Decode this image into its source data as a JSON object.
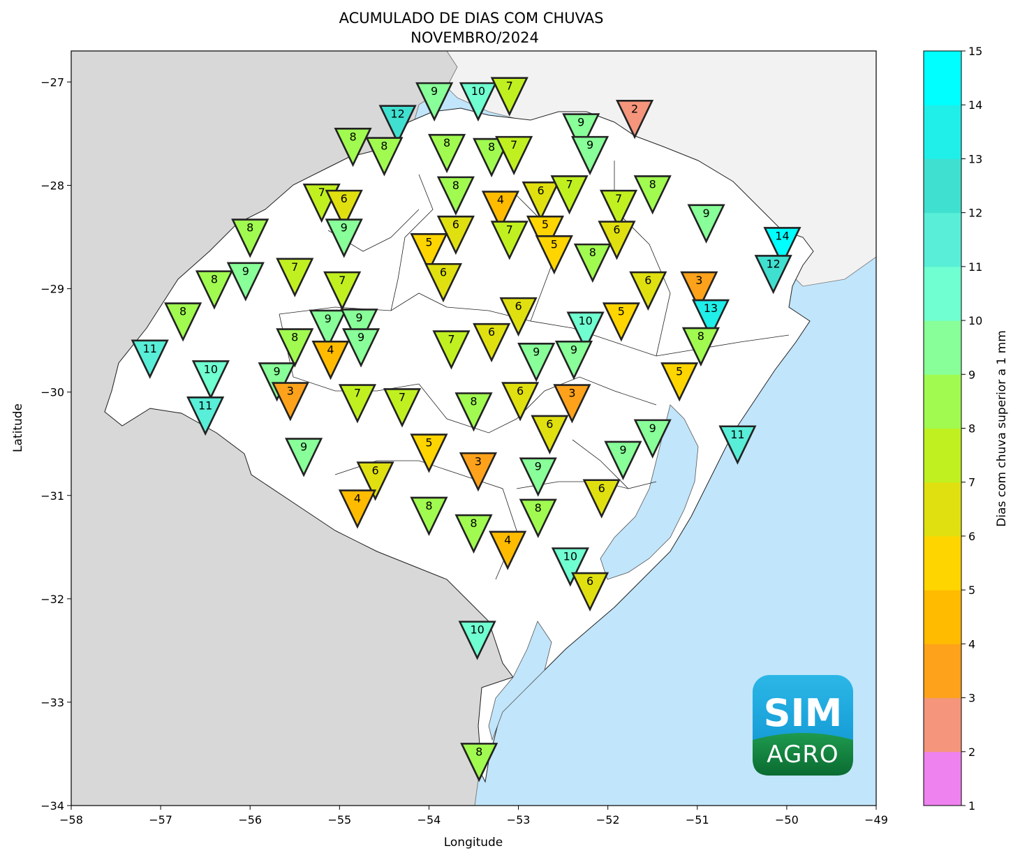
{
  "title": {
    "line1": "ACUMULADO DE DIAS COM CHUVAS",
    "line2": "NOVEMBRO/2024"
  },
  "axes": {
    "xlabel": "Longitude",
    "ylabel": "Latitude",
    "xlim": [
      -58,
      -49
    ],
    "ylim": [
      -34,
      -26.7
    ],
    "xticks": [
      -58,
      -57,
      -56,
      -55,
      -54,
      -53,
      -52,
      -51,
      -50,
      -49
    ],
    "xtick_labels": [
      "−58",
      "−57",
      "−56",
      "−55",
      "−54",
      "−53",
      "−52",
      "−51",
      "−50",
      "−49"
    ],
    "yticks": [
      -34,
      -33,
      -32,
      -31,
      -30,
      -29,
      -28,
      -27
    ],
    "ytick_labels": [
      "−34",
      "−33",
      "−32",
      "−31",
      "−30",
      "−29",
      "−28",
      "−27"
    ]
  },
  "colorbar": {
    "label": "Dias com chuva superior a 1 mm",
    "ticks": [
      "1",
      "2",
      "3",
      "4",
      "5",
      "6",
      "7",
      "8",
      "9",
      "10",
      "11",
      "12",
      "13",
      "14",
      "15"
    ],
    "colors": [
      "#ee82ee",
      "#f4957c",
      "#fda21a",
      "#ffbb00",
      "#ffd500",
      "#e0e010",
      "#c0f020",
      "#a0fa50",
      "#88ff98",
      "#70ffd0",
      "#58eed8",
      "#40e0d0",
      "#20eee8",
      "#00ffff"
    ]
  },
  "logo": {
    "line1": "SIM",
    "line2": "AGRO"
  },
  "colors": {
    "ocean": "#c1e5fb",
    "foreign_land": "#d8d8d8",
    "sc_land": "#f2f2f2",
    "state_land": "#ffffff",
    "marker_edge": "#222222"
  },
  "chart_data": {
    "type": "scatter",
    "title": "ACUMULADO DE DIAS COM CHUVAS NOVEMBRO/2024",
    "xlabel": "Longitude",
    "ylabel": "Latitude",
    "xlim": [
      -58,
      -49
    ],
    "ylim": [
      -34,
      -26.7
    ],
    "value_label": "Dias com chuva superior a 1 mm",
    "stations": [
      {
        "lon": -53.94,
        "lat": -27.16,
        "value": 9
      },
      {
        "lon": -53.45,
        "lat": -27.16,
        "value": 10
      },
      {
        "lon": -53.1,
        "lat": -27.11,
        "value": 7
      },
      {
        "lon": -51.7,
        "lat": -27.33,
        "value": 2
      },
      {
        "lon": -54.35,
        "lat": -27.38,
        "value": 12
      },
      {
        "lon": -52.3,
        "lat": -27.46,
        "value": 9
      },
      {
        "lon": -54.85,
        "lat": -27.6,
        "value": 8
      },
      {
        "lon": -54.5,
        "lat": -27.69,
        "value": 8
      },
      {
        "lon": -53.8,
        "lat": -27.66,
        "value": 8
      },
      {
        "lon": -53.3,
        "lat": -27.7,
        "value": 8
      },
      {
        "lon": -53.05,
        "lat": -27.68,
        "value": 7
      },
      {
        "lon": -52.2,
        "lat": -27.68,
        "value": 9
      },
      {
        "lon": -53.7,
        "lat": -28.07,
        "value": 8
      },
      {
        "lon": -52.75,
        "lat": -28.12,
        "value": 6
      },
      {
        "lon": -52.43,
        "lat": -28.06,
        "value": 7
      },
      {
        "lon": -51.5,
        "lat": -28.06,
        "value": 8
      },
      {
        "lon": -55.2,
        "lat": -28.14,
        "value": 7
      },
      {
        "lon": -54.95,
        "lat": -28.2,
        "value": 6
      },
      {
        "lon": -53.2,
        "lat": -28.21,
        "value": 4
      },
      {
        "lon": -51.88,
        "lat": -28.2,
        "value": 7
      },
      {
        "lon": -50.9,
        "lat": -28.34,
        "value": 9
      },
      {
        "lon": -56.0,
        "lat": -28.48,
        "value": 8
      },
      {
        "lon": -54.95,
        "lat": -28.48,
        "value": 9
      },
      {
        "lon": -53.7,
        "lat": -28.45,
        "value": 6
      },
      {
        "lon": -53.1,
        "lat": -28.5,
        "value": 7
      },
      {
        "lon": -52.7,
        "lat": -28.45,
        "value": 5
      },
      {
        "lon": -51.9,
        "lat": -28.5,
        "value": 6
      },
      {
        "lon": -50.05,
        "lat": -28.56,
        "value": 14
      },
      {
        "lon": -54.0,
        "lat": -28.62,
        "value": 5
      },
      {
        "lon": -52.6,
        "lat": -28.64,
        "value": 5
      },
      {
        "lon": -52.17,
        "lat": -28.72,
        "value": 8
      },
      {
        "lon": -50.15,
        "lat": -28.83,
        "value": 12
      },
      {
        "lon": -55.5,
        "lat": -28.86,
        "value": 7
      },
      {
        "lon": -56.05,
        "lat": -28.9,
        "value": 9
      },
      {
        "lon": -56.4,
        "lat": -28.98,
        "value": 8
      },
      {
        "lon": -53.84,
        "lat": -28.91,
        "value": 6
      },
      {
        "lon": -54.97,
        "lat": -28.99,
        "value": 7
      },
      {
        "lon": -51.55,
        "lat": -28.99,
        "value": 6
      },
      {
        "lon": -50.98,
        "lat": -28.99,
        "value": 3
      },
      {
        "lon": -56.75,
        "lat": -29.29,
        "value": 8
      },
      {
        "lon": -53.0,
        "lat": -29.24,
        "value": 6
      },
      {
        "lon": -51.85,
        "lat": -29.29,
        "value": 5
      },
      {
        "lon": -50.85,
        "lat": -29.26,
        "value": 13
      },
      {
        "lon": -55.13,
        "lat": -29.36,
        "value": 9
      },
      {
        "lon": -54.78,
        "lat": -29.35,
        "value": 9
      },
      {
        "lon": -52.25,
        "lat": -29.38,
        "value": 10
      },
      {
        "lon": -53.3,
        "lat": -29.49,
        "value": 6
      },
      {
        "lon": -55.5,
        "lat": -29.54,
        "value": 8
      },
      {
        "lon": -54.76,
        "lat": -29.54,
        "value": 9
      },
      {
        "lon": -53.75,
        "lat": -29.56,
        "value": 7
      },
      {
        "lon": -50.96,
        "lat": -29.53,
        "value": 8
      },
      {
        "lon": -57.12,
        "lat": -29.65,
        "value": 11
      },
      {
        "lon": -55.1,
        "lat": -29.66,
        "value": 4
      },
      {
        "lon": -52.8,
        "lat": -29.68,
        "value": 9
      },
      {
        "lon": -52.38,
        "lat": -29.66,
        "value": 9
      },
      {
        "lon": -56.44,
        "lat": -29.85,
        "value": 10
      },
      {
        "lon": -55.7,
        "lat": -29.87,
        "value": 9
      },
      {
        "lon": -51.2,
        "lat": -29.87,
        "value": 5
      },
      {
        "lon": -52.98,
        "lat": -30.06,
        "value": 6
      },
      {
        "lon": -55.55,
        "lat": -30.06,
        "value": 3
      },
      {
        "lon": -54.8,
        "lat": -30.08,
        "value": 7
      },
      {
        "lon": -54.3,
        "lat": -30.12,
        "value": 7
      },
      {
        "lon": -52.4,
        "lat": -30.08,
        "value": 3
      },
      {
        "lon": -56.5,
        "lat": -30.2,
        "value": 11
      },
      {
        "lon": -53.5,
        "lat": -30.16,
        "value": 8
      },
      {
        "lon": -52.65,
        "lat": -30.38,
        "value": 6
      },
      {
        "lon": -51.5,
        "lat": -30.42,
        "value": 9
      },
      {
        "lon": -50.55,
        "lat": -30.48,
        "value": 11
      },
      {
        "lon": -55.4,
        "lat": -30.6,
        "value": 9
      },
      {
        "lon": -54.0,
        "lat": -30.56,
        "value": 5
      },
      {
        "lon": -51.83,
        "lat": -30.63,
        "value": 9
      },
      {
        "lon": -53.45,
        "lat": -30.74,
        "value": 3
      },
      {
        "lon": -52.78,
        "lat": -30.79,
        "value": 9
      },
      {
        "lon": -54.6,
        "lat": -30.83,
        "value": 6
      },
      {
        "lon": -52.07,
        "lat": -31.0,
        "value": 6
      },
      {
        "lon": -54.8,
        "lat": -31.1,
        "value": 4
      },
      {
        "lon": -54.0,
        "lat": -31.17,
        "value": 8
      },
      {
        "lon": -52.78,
        "lat": -31.19,
        "value": 8
      },
      {
        "lon": -53.5,
        "lat": -31.34,
        "value": 8
      },
      {
        "lon": -53.12,
        "lat": -31.5,
        "value": 4
      },
      {
        "lon": -52.42,
        "lat": -31.66,
        "value": 10
      },
      {
        "lon": -52.2,
        "lat": -31.9,
        "value": 6
      },
      {
        "lon": -53.46,
        "lat": -32.37,
        "value": 10
      },
      {
        "lon": -53.44,
        "lat": -33.55,
        "value": 8
      }
    ]
  }
}
